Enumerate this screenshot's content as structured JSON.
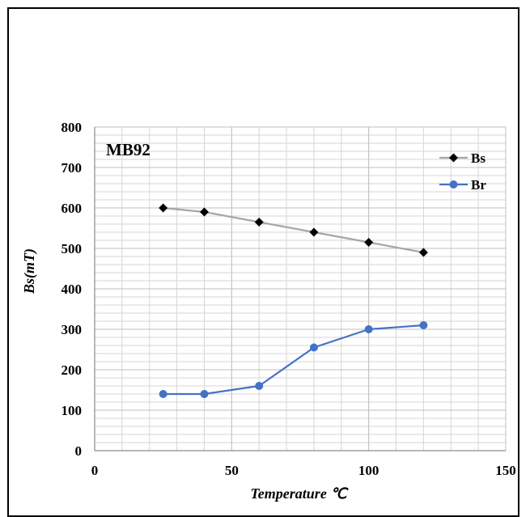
{
  "chart_data": {
    "type": "line",
    "panel_label": "MB92",
    "xlabel": "Temperature ℃",
    "ylabel": "Bs(mT)",
    "xlim": [
      0,
      150
    ],
    "ylim": [
      0,
      800
    ],
    "xticks": [
      0,
      50,
      100,
      150
    ],
    "yticks": [
      0,
      100,
      200,
      300,
      400,
      500,
      600,
      700,
      800
    ],
    "grid": true,
    "legend_position": "top-right",
    "x": [
      25,
      40,
      60,
      80,
      100,
      120
    ],
    "series": [
      {
        "name": "Bs",
        "values": [
          600,
          590,
          565,
          540,
          515,
          490
        ],
        "line_color": "#a6a6a6",
        "marker": "diamond",
        "marker_color": "#000000"
      },
      {
        "name": "Br",
        "values": [
          140,
          140,
          160,
          255,
          300,
          310
        ],
        "line_color": "#4472c4",
        "marker": "circle",
        "marker_color": "#4472c4"
      }
    ]
  }
}
